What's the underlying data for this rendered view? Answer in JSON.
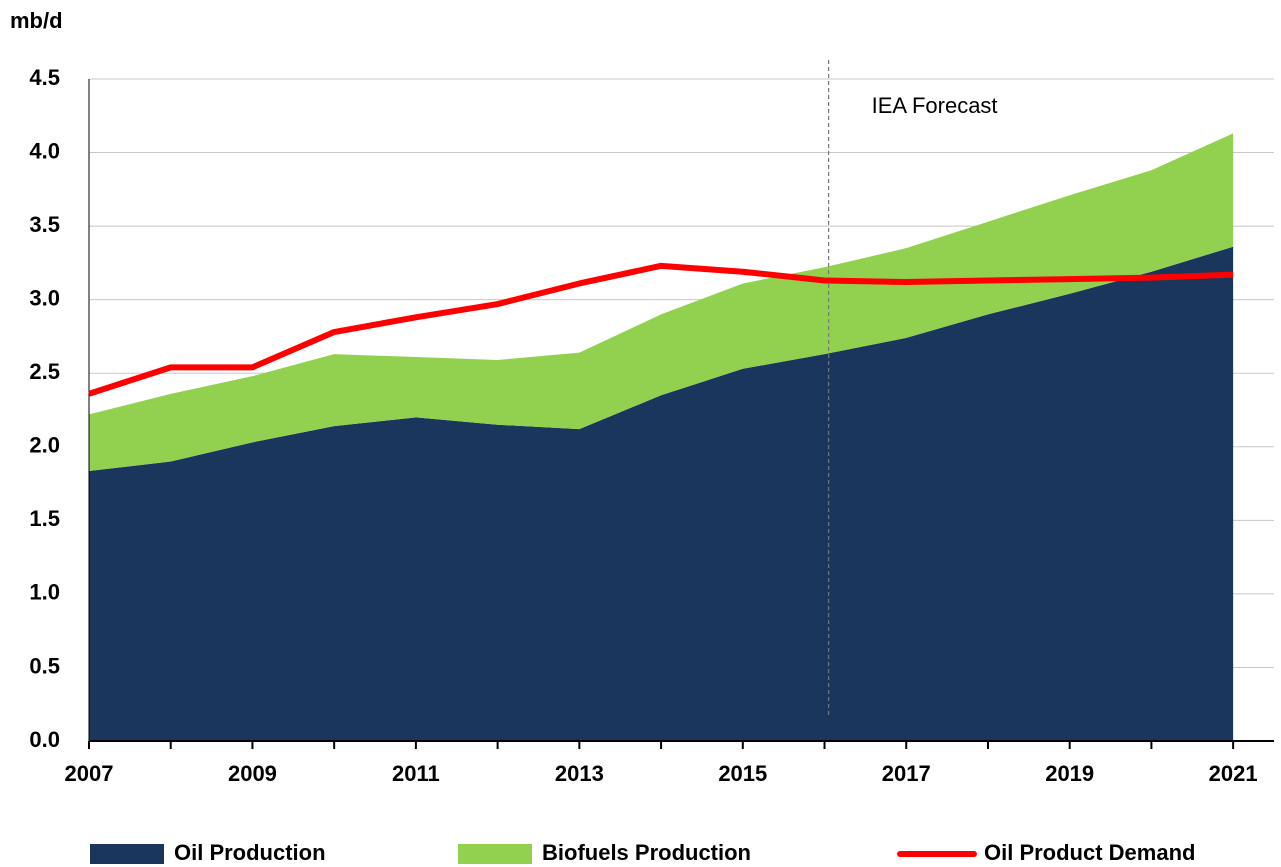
{
  "chart_data": {
    "type": "stacked-area-line",
    "y_axis_label": "mb/d",
    "x": [
      2007,
      2008,
      2009,
      2010,
      2011,
      2012,
      2013,
      2014,
      2015,
      2016,
      2017,
      2018,
      2019,
      2020,
      2021
    ],
    "series": [
      {
        "name": "Oil Production",
        "color": "#1b365d",
        "kind": "area",
        "values": [
          1.835,
          1.9,
          2.03,
          2.14,
          2.2,
          2.15,
          2.12,
          2.35,
          2.53,
          2.63,
          2.74,
          2.9,
          3.04,
          3.19,
          3.36
        ]
      },
      {
        "name": "Biofuels Production",
        "color": "#92d050",
        "kind": "area",
        "values": [
          0.385,
          0.46,
          0.45,
          0.49,
          0.41,
          0.44,
          0.52,
          0.55,
          0.58,
          0.59,
          0.61,
          0.63,
          0.67,
          0.69,
          0.77
        ]
      },
      {
        "name": "Oil Product Demand",
        "color": "#ff0000",
        "kind": "line",
        "values": [
          2.36,
          2.54,
          2.54,
          2.78,
          2.88,
          2.97,
          3.11,
          3.23,
          3.19,
          3.13,
          3.12,
          3.13,
          3.14,
          3.15,
          3.17
        ]
      }
    ],
    "xlim": [
      2007,
      2021.5
    ],
    "xticks": [
      2007,
      2009,
      2011,
      2013,
      2015,
      2017,
      2019,
      2021
    ],
    "ylim": [
      0,
      4.5
    ],
    "yticks": [
      {
        "value": 0,
        "label": "0.0"
      },
      0.5,
      {
        "value": 1,
        "label": "1.0"
      },
      1.5,
      {
        "value": 2,
        "label": "2.0"
      },
      2.5,
      {
        "value": 3,
        "label": "3.0"
      },
      3.5,
      {
        "value": 4,
        "label": "4.0"
      },
      4.5
    ],
    "grid": true,
    "annotation": {
      "text": "IEA Forecast",
      "x": 2016.05
    },
    "legend": "bottom"
  }
}
